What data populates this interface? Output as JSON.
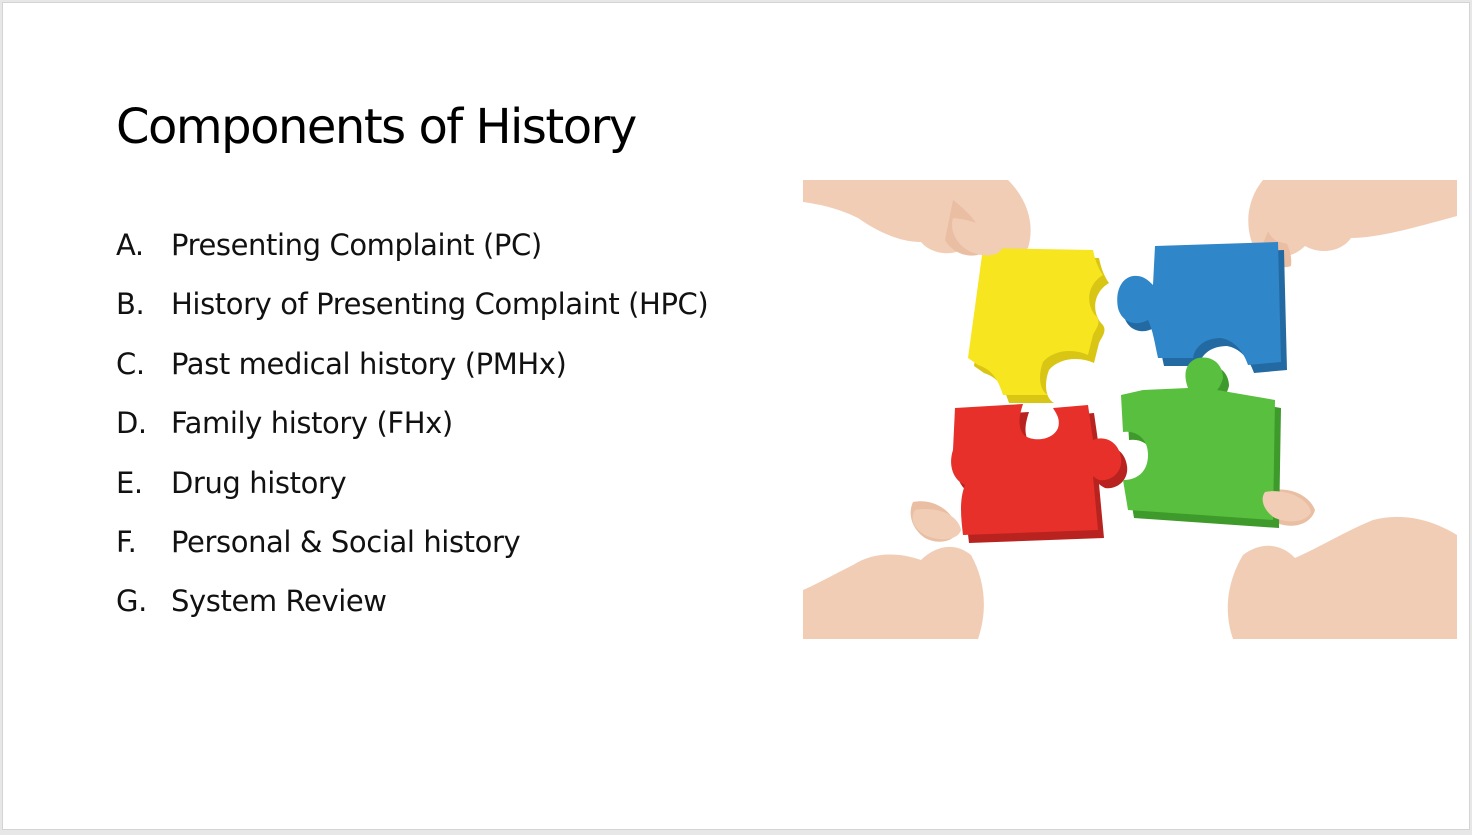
{
  "slide": {
    "title": "Components of History",
    "items": [
      {
        "marker": "A.",
        "text": "Presenting Complaint (PC)"
      },
      {
        "marker": "B.",
        "text": "History of Presenting Complaint (HPC)"
      },
      {
        "marker": "C.",
        "text": "Past medical history (PMHx)"
      },
      {
        "marker": "D.",
        "text": "Family history (FHx)"
      },
      {
        "marker": "E.",
        "text": "Drug history"
      },
      {
        "marker": "F.",
        "text": "Personal & Social history"
      },
      {
        "marker": "G.",
        "text": "System Review"
      }
    ]
  },
  "picture": {
    "pieces": [
      {
        "name": "yellow",
        "color": "#f6e51f"
      },
      {
        "name": "blue",
        "color": "#2f86c9"
      },
      {
        "name": "red",
        "color": "#e7302a"
      },
      {
        "name": "green",
        "color": "#58bf3f"
      }
    ],
    "skin_color": "#f1cdb5"
  }
}
